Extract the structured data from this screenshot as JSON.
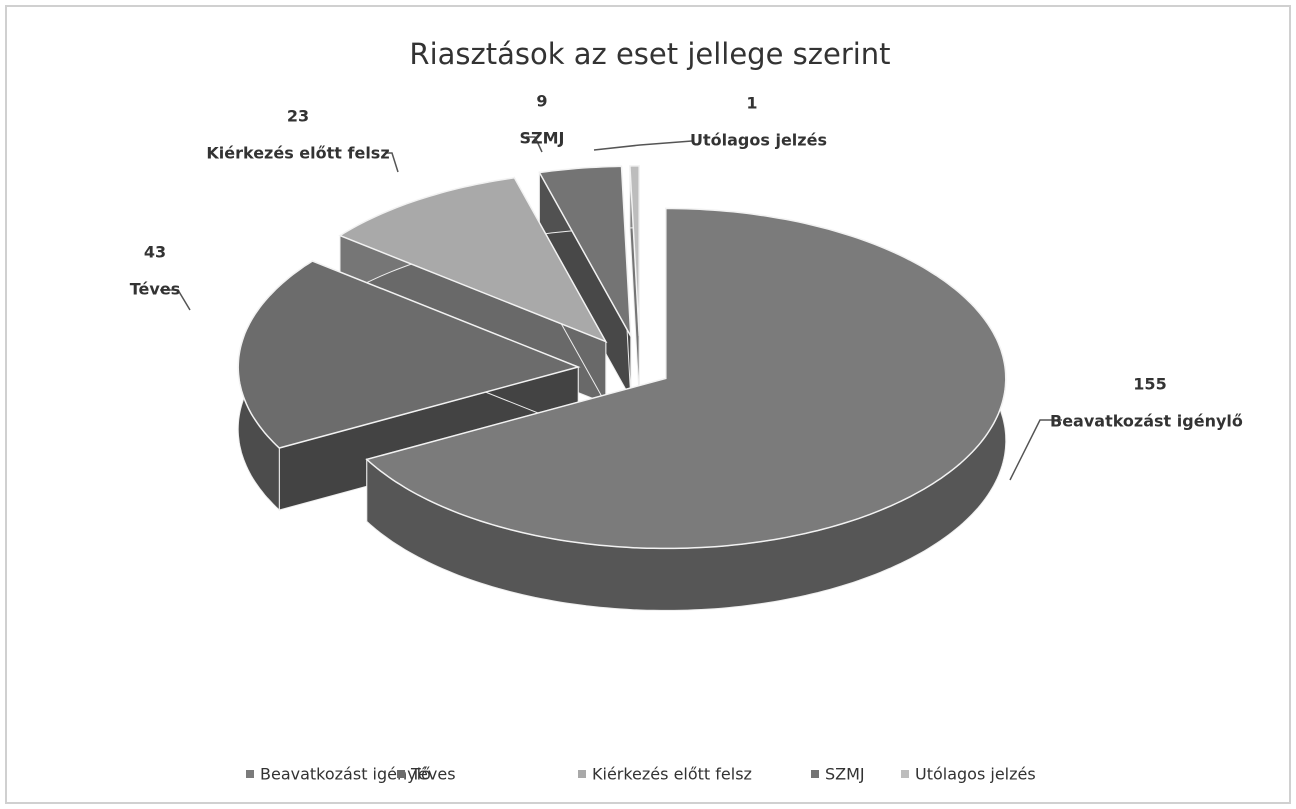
{
  "chart_data": {
    "type": "pie3d",
    "title": "Riasztások az eset jellege szerint",
    "categories": [
      "Beavatkozást igénylő",
      "Téves",
      "Kiérkezés előtt felsz",
      "SZMJ",
      "Utólagos jelzés"
    ],
    "values": [
      155,
      43,
      23,
      9,
      1
    ],
    "colors": [
      "#7b7b7b",
      "#6c6c6c",
      "#a9a9a9",
      "#747474",
      "#bdbdbd"
    ],
    "legend": "bottom"
  }
}
